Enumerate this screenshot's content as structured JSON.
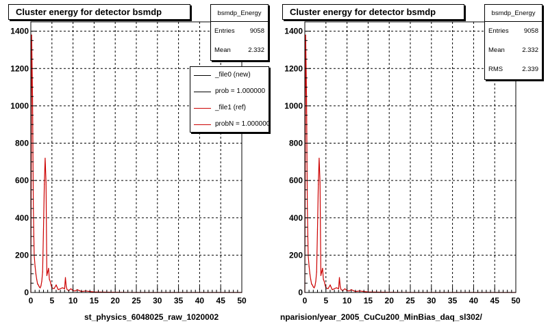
{
  "chart_data": [
    {
      "type": "histogram",
      "title": "Cluster energy for detector bsmdp",
      "stats": {
        "name": "bsmdp_Energy",
        "entries_label": "Entries",
        "entries": "9058",
        "mean_label": "Mean",
        "mean": "2.332"
      },
      "legend": [
        {
          "label": "_file0 (new)",
          "color": "#000000"
        },
        {
          "label": "prob = 1.000000",
          "color": "#000000"
        },
        {
          "label": "_file1 (ref)",
          "color": "#cc0000"
        },
        {
          "label": "probN = 1.000000",
          "color": "#cc0000"
        }
      ],
      "xlabel": "st_physics_6048025_raw_1020002",
      "xlim": [
        0,
        50
      ],
      "ylim": [
        0,
        1450
      ],
      "xticks": [
        "0",
        "5",
        "10",
        "15",
        "20",
        "25",
        "30",
        "35",
        "40",
        "45",
        "50"
      ],
      "yticks": [
        "0",
        "200",
        "400",
        "600",
        "800",
        "1000",
        "1200",
        "1400"
      ],
      "grid": true,
      "series": [
        {
          "name": "_file1 (ref)",
          "color": "#cc0000",
          "x": [
            0,
            0.2,
            0.4,
            0.6,
            0.8,
            1.0,
            1.2,
            1.4,
            1.6,
            1.8,
            2.0,
            2.2,
            2.4,
            2.6,
            2.8,
            3.0,
            3.2,
            3.4,
            3.6,
            3.8,
            4.0,
            4.2,
            4.4,
            4.6,
            4.8,
            5.0,
            5.5,
            6.0,
            6.5,
            7.0,
            7.5,
            8.0,
            8.2,
            8.4,
            8.6,
            9.0,
            9.5,
            10,
            10.5,
            11,
            11.5,
            12,
            13,
            14,
            15,
            17,
            20,
            25,
            30,
            35,
            40,
            45,
            50
          ],
          "y": [
            0,
            1380,
            1050,
            450,
            200,
            140,
            100,
            70,
            45,
            40,
            30,
            25,
            35,
            60,
            110,
            340,
            580,
            720,
            590,
            90,
            110,
            130,
            70,
            60,
            40,
            25,
            20,
            40,
            15,
            20,
            25,
            20,
            80,
            30,
            15,
            10,
            20,
            10,
            8,
            15,
            10,
            5,
            8,
            5,
            3,
            2,
            1,
            0,
            0,
            0,
            0,
            0,
            0
          ]
        }
      ]
    },
    {
      "type": "histogram",
      "title": "Cluster energy for detector bsmdp",
      "stats": {
        "name": "bsmdp_Energy",
        "entries_label": "Entries",
        "entries": "9058",
        "mean_label": "Mean",
        "mean": "2.332",
        "rms_label": "RMS",
        "rms": "2.339"
      },
      "xlabel": "nparision/year_2005_CuCu200_MinBias_daq_sl302/",
      "xlim": [
        0,
        50
      ],
      "ylim": [
        0,
        1450
      ],
      "xticks": [
        "0",
        "5",
        "10",
        "15",
        "20",
        "25",
        "30",
        "35",
        "40",
        "45",
        "50"
      ],
      "yticks": [
        "0",
        "200",
        "400",
        "600",
        "800",
        "1000",
        "1200",
        "1400"
      ],
      "grid": true,
      "series": [
        {
          "color": "#cc0000",
          "x": [
            0,
            0.2,
            0.4,
            0.6,
            0.8,
            1.0,
            1.2,
            1.4,
            1.6,
            1.8,
            2.0,
            2.2,
            2.4,
            2.6,
            2.8,
            3.0,
            3.2,
            3.4,
            3.6,
            3.8,
            4.0,
            4.2,
            4.4,
            4.6,
            4.8,
            5.0,
            5.5,
            6.0,
            6.5,
            7.0,
            7.5,
            8.0,
            8.2,
            8.4,
            8.6,
            9.0,
            9.5,
            10,
            10.5,
            11,
            11.5,
            12,
            13,
            14,
            15,
            17,
            20,
            25,
            30,
            35,
            40,
            45,
            50
          ],
          "y": [
            0,
            1380,
            1050,
            450,
            200,
            140,
            100,
            70,
            45,
            40,
            30,
            25,
            35,
            60,
            110,
            340,
            580,
            720,
            590,
            90,
            110,
            130,
            70,
            60,
            40,
            25,
            20,
            40,
            15,
            20,
            25,
            20,
            80,
            30,
            15,
            10,
            20,
            10,
            8,
            15,
            10,
            5,
            8,
            5,
            3,
            2,
            1,
            0,
            0,
            0,
            0,
            0,
            0
          ]
        }
      ]
    }
  ],
  "footer": {
    "faint_text": ""
  }
}
